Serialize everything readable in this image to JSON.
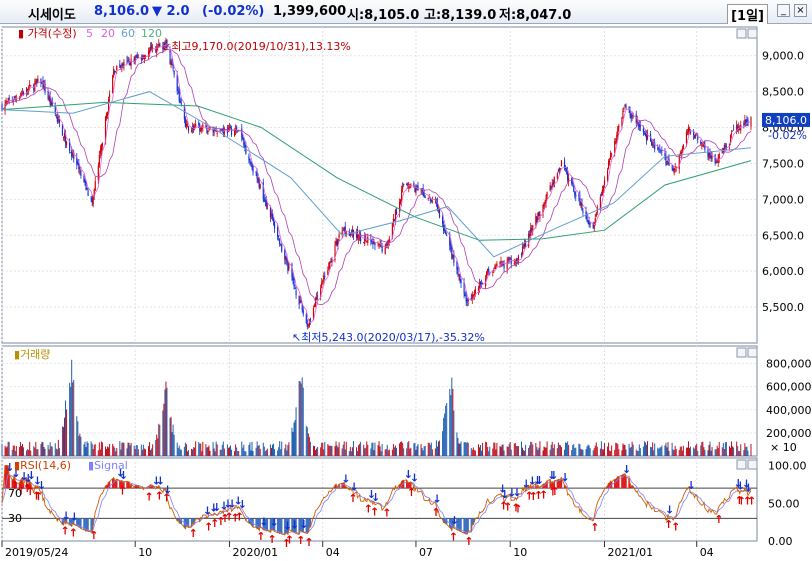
{
  "header": {
    "name": "시세이도",
    "price": "8,106.0",
    "change": "▼ 2.0",
    "change_pct": "(-0.02%)",
    "volume": "1,399,600",
    "open": "시:8,105.0",
    "high": "고:8,139.0",
    "low": "저:8,047.0",
    "period": "[1일]",
    "minimize_label": "_",
    "close_label": "×",
    "colors": {
      "down": "#1030d0",
      "up": "#d00000"
    }
  },
  "chart_data": [
    {
      "type": "candlestick",
      "legend": [
        "가격(수정)",
        "5",
        "20",
        "60",
        "120"
      ],
      "legend_colors": [
        "#c00000",
        "#e060e0",
        "#e060e0",
        "#6aa0d0",
        "#50b080"
      ],
      "ylim": [
        5000,
        9400
      ],
      "y_ticks": [
        5500,
        6000,
        6500,
        7000,
        7500,
        8000,
        8500,
        9000
      ],
      "y_tick_labels": [
        "5,500.0",
        "6,000.0",
        "6,500.0",
        "7,000.0",
        "7,500.0",
        "8,000.0",
        "8,500.0",
        "9,000.0"
      ],
      "last_price_label": "8,106.0",
      "last_change_label": "-0.02%",
      "last_price": 8106,
      "high_annotation": "최고9,170.0(2019/10/31),13.13%",
      "low_annotation": "최저5,243.0(2020/03/17),-35.32%",
      "path_dates": [
        "2019/05/24",
        "2019/07/01",
        "2019/08/20",
        "2019/09/10",
        "2019/10/31",
        "2019/11/20",
        "2020/01/10",
        "2020/02/10",
        "2020/03/17",
        "2020/04/20",
        "2020/06/01",
        "2020/06/20",
        "2020/07/20",
        "2020/08/20",
        "2020/09/10",
        "2020/10/10",
        "2020/11/20",
        "2020/12/20",
        "2021/01/20",
        "2021/02/10",
        "2021/03/10",
        "2021/03/25",
        "2021/04/20",
        "2021/05/10",
        "2021/05/24"
      ],
      "path_prices": [
        8300,
        8650,
        6950,
        8800,
        9170,
        8000,
        7950,
        6800,
        5243,
        6600,
        6300,
        7250,
        6950,
        5550,
        6000,
        6200,
        7500,
        6600,
        8300,
        7900,
        7400,
        8000,
        7500,
        8000,
        8106
      ],
      "ma": [
        {
          "name": "120",
          "dates": [
            "2019/05/24",
            "2019/09/01",
            "2019/12/01",
            "2020/02/01",
            "2020/04/15",
            "2020/07/01",
            "2020/09/01",
            "2020/11/01",
            "2021/01/01",
            "2021/03/01",
            "2021/05/24"
          ],
          "values": [
            8250,
            8350,
            8300,
            8000,
            7300,
            6750,
            6430,
            6450,
            6570,
            7200,
            7540
          ]
        },
        {
          "name": "60",
          "dates": [
            "2019/05/24",
            "2019/08/01",
            "2019/10/15",
            "2019/12/15",
            "2020/03/01",
            "2020/04/20",
            "2020/06/15",
            "2020/08/01",
            "2020/09/15",
            "2020/11/15",
            "2021/01/10",
            "2021/03/01",
            "2021/05/24"
          ],
          "values": [
            8250,
            8200,
            8500,
            8000,
            7300,
            6500,
            6700,
            6900,
            6200,
            6600,
            6950,
            7600,
            7720
          ]
        }
      ]
    },
    {
      "type": "bar",
      "legend": [
        "거래량"
      ],
      "unit": "× 10",
      "ylim": [
        0,
        90000
      ],
      "y_ticks": [
        20000,
        40000,
        60000,
        80000
      ],
      "y_tick_labels": [
        "200,000",
        "400,000",
        "600,000",
        "800,000"
      ],
      "peaks": [
        {
          "date": "2019/07/30",
          "value": 82000
        },
        {
          "date": "2019/10/31",
          "value": 60000
        },
        {
          "date": "2020/03/10",
          "value": 67000
        },
        {
          "date": "2020/08/03",
          "value": 64000
        }
      ]
    },
    {
      "type": "line",
      "legend": [
        "RSI(14,6)",
        "Signal"
      ],
      "ylim": [
        0,
        110
      ],
      "y_ticks": [
        0,
        50,
        100
      ],
      "y_tick_labels": [
        "0.00",
        "50.00",
        "100.00"
      ],
      "levels": [
        70,
        30
      ],
      "level_labels": [
        "70",
        "30"
      ]
    }
  ],
  "x_axis": {
    "start": "2019/05/24",
    "end": "2021/05/24",
    "ticks": [
      {
        "date": "2019/05/24",
        "label": "2019/05/24"
      },
      {
        "date": "2019/10/01",
        "label": "10"
      },
      {
        "date": "2020/01/01",
        "label": "2020/01"
      },
      {
        "date": "2020/04/01",
        "label": "04"
      },
      {
        "date": "2020/07/01",
        "label": "07"
      },
      {
        "date": "2020/10/01",
        "label": "10"
      },
      {
        "date": "2021/01/01",
        "label": "2021/01"
      },
      {
        "date": "2021/04/01",
        "label": "04"
      }
    ]
  }
}
